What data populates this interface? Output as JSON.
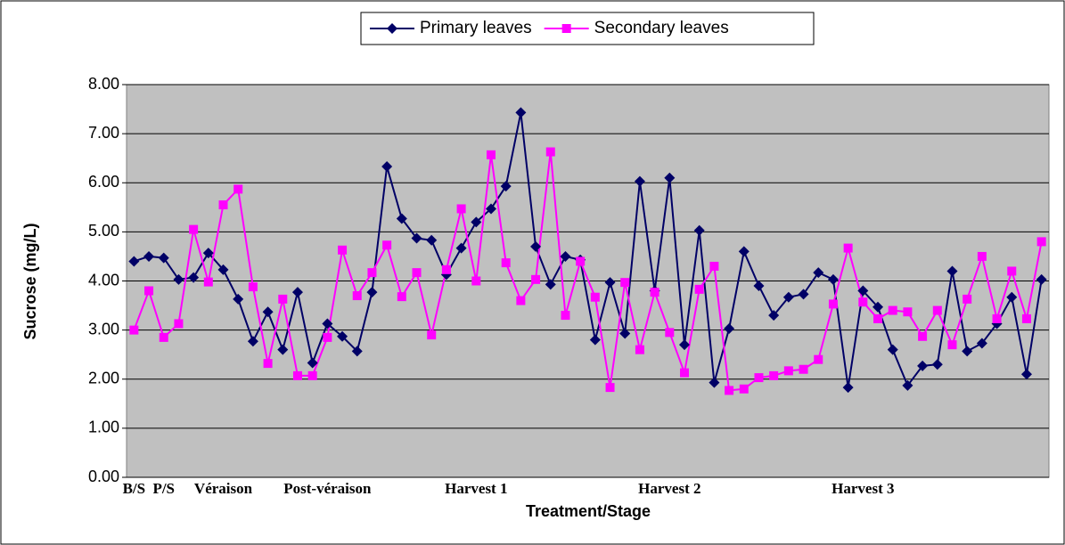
{
  "chart_data": {
    "type": "line",
    "y_label": "Sucrose (mg/L)",
    "x_label": "Treatment/Stage",
    "categories": [
      "B/S",
      null,
      "P/S",
      null,
      null,
      null,
      "Véraison",
      null,
      null,
      null,
      null,
      null,
      null,
      "Post-véraison",
      null,
      null,
      null,
      null,
      null,
      null,
      null,
      null,
      null,
      "Harvest 1",
      null,
      null,
      null,
      null,
      null,
      null,
      null,
      null,
      null,
      null,
      null,
      null,
      "Harvest 2",
      null,
      null,
      null,
      null,
      null,
      null,
      null,
      null,
      null,
      null,
      null,
      null,
      "Harvest 3",
      null,
      null,
      null,
      null,
      null,
      null,
      null,
      null,
      null,
      null,
      null,
      null
    ],
    "series": [
      {
        "name": "Primary leaves",
        "color": "#000066",
        "marker": "diamond",
        "values": [
          4.4,
          4.5,
          4.47,
          4.03,
          4.07,
          4.57,
          4.23,
          3.63,
          2.77,
          3.37,
          2.6,
          3.77,
          2.33,
          3.13,
          2.87,
          2.57,
          3.77,
          6.33,
          5.27,
          4.87,
          4.83,
          4.13,
          4.67,
          5.2,
          5.47,
          5.93,
          7.43,
          4.7,
          3.93,
          4.5,
          4.43,
          2.8,
          3.97,
          2.93,
          6.03,
          3.8,
          6.1,
          2.7,
          5.03,
          1.93,
          3.03,
          4.6,
          3.9,
          3.3,
          3.67,
          3.73,
          4.17,
          4.03,
          1.83,
          3.8,
          3.47,
          2.6,
          1.87,
          2.27,
          2.3,
          4.2,
          2.57,
          2.73,
          3.13,
          3.67,
          2.1,
          4.03
        ]
      },
      {
        "name": "Secondary leaves",
        "color": "#ff00ff",
        "marker": "square",
        "values": [
          3.0,
          3.8,
          2.85,
          3.13,
          5.05,
          3.98,
          5.55,
          5.87,
          3.88,
          2.32,
          3.63,
          2.07,
          2.07,
          2.85,
          4.63,
          3.7,
          4.17,
          4.73,
          3.68,
          4.17,
          2.9,
          4.23,
          5.47,
          4.0,
          6.57,
          4.37,
          3.6,
          4.03,
          6.63,
          3.3,
          4.4,
          3.67,
          1.83,
          3.97,
          2.6,
          3.77,
          2.95,
          2.13,
          3.83,
          4.3,
          1.77,
          1.8,
          2.03,
          2.07,
          2.17,
          2.2,
          2.4,
          3.53,
          4.67,
          3.57,
          3.23,
          3.4,
          3.37,
          2.87,
          3.4,
          2.7,
          3.63,
          4.5,
          3.23,
          4.2,
          3.23,
          4.8
        ]
      }
    ],
    "ylim": [
      0,
      8
    ],
    "yticks": [
      {
        "value": 0,
        "label": "0.00"
      },
      {
        "value": 1,
        "label": "1.00"
      },
      {
        "value": 2,
        "label": "2.00"
      },
      {
        "value": 3,
        "label": "3.00"
      },
      {
        "value": 4,
        "label": "4.00"
      },
      {
        "value": 5,
        "label": "5.00"
      },
      {
        "value": 6,
        "label": "6.00"
      },
      {
        "value": 7,
        "label": "7.00"
      },
      {
        "value": 8,
        "label": "8.00"
      }
    ],
    "grid": true,
    "legend": "top"
  }
}
